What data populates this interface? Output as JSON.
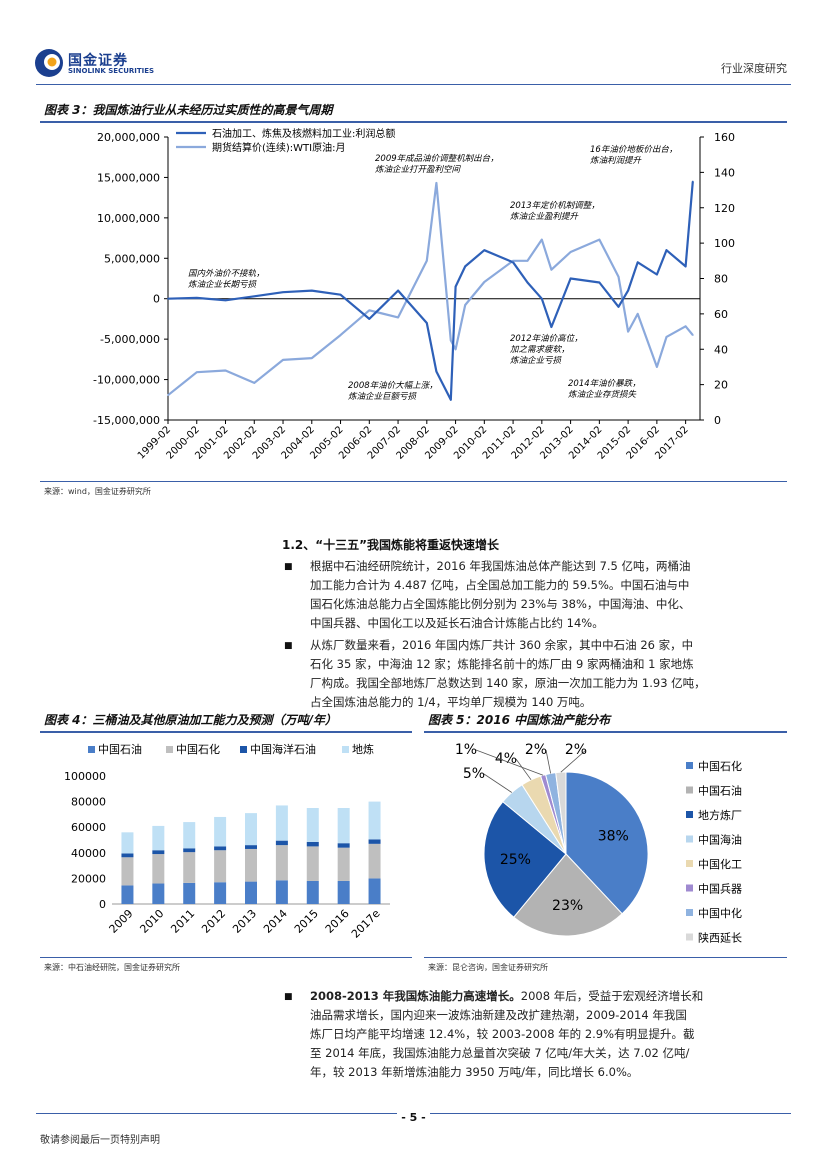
{
  "header": {
    "brand_cn": "国金证券",
    "brand_en": "SINOLINK SECURITIES",
    "report_type": "行业深度研究"
  },
  "fig3": {
    "title": "图表 3：我国炼油行业从未经历过实质性的高景气周期",
    "source": "来源：wind，国金证券研究所",
    "legend": [
      "石油加工、炼焦及核燃料加工业:利润总额",
      "期货结算价(连续):WTI原油:月"
    ],
    "left_ticks": [
      "20,000,000",
      "15,000,000",
      "10,000,000",
      "5,000,000",
      "0",
      "-5,000,000",
      "-10,000,000",
      "-15,000,000"
    ],
    "right_ticks": [
      "160",
      "140",
      "120",
      "100",
      "80",
      "60",
      "40",
      "20",
      "0"
    ],
    "x_ticks": [
      "1999-02",
      "2000-02",
      "2001-02",
      "2002-02",
      "2003-02",
      "2004-02",
      "2005-02",
      "2006-02",
      "2007-02",
      "2008-02",
      "2009-02",
      "2010-02",
      "2011-02",
      "2012-02",
      "2013-02",
      "2014-02",
      "2015-02",
      "2016-02",
      "2017-02"
    ],
    "annotations": [
      {
        "lines": [
          "国内外油价不接轨，",
          "炼油企业长期亏损"
        ]
      },
      {
        "lines": [
          "2009年成品油价调整机制出台，",
          "炼油企业打开盈利空间"
        ]
      },
      {
        "lines": [
          "2013年定价机制调整，",
          "炼油企业盈利提升"
        ]
      },
      {
        "lines": [
          "16年油价地板价出台，",
          "炼油利润提升"
        ]
      },
      {
        "lines": [
          "2008年油价大幅上涨，",
          "炼油企业巨额亏损"
        ]
      },
      {
        "lines": [
          "2012年油价高位，",
          "加之需求疲软，",
          "炼油企业亏损"
        ]
      },
      {
        "lines": [
          "2014年油价暴跌，",
          "炼油企业存货损失"
        ]
      }
    ]
  },
  "section": {
    "heading": "1.2、“十三五”我国炼能将重返快速增长",
    "para1": [
      "根据中石油经研院统计，2016 年我国炼油总体产能达到 7.5 亿吨，两桶油",
      "加工能力合计为 4.487 亿吨，占全国总加工能力的 59.5%。中国石油与中",
      "国石化炼油总能力占全国炼能比例分别为 23%与 38%，中国海油、中化、",
      "中国兵器、中国化工以及延长石油合计炼能占比约 14%。"
    ],
    "para2": [
      "从炼厂数量来看，2016 年国内炼厂共计 360 余家，其中中石油 26 家，中",
      "石化 35 家，中海油 12 家；炼能排名前十的炼厂由 9 家两桶油和 1 家地炼",
      "厂构成。我国全部地炼厂总数达到 140 家，原油一次加工能力为 1.93 亿吨，",
      "占全国炼油总能力的 1/4，平均单厂规模为 140 万吨。"
    ],
    "para3_bold": "2008-2013 年我国炼油能力高速增长。",
    "para3": [
      "2008 年后，受益于宏观经济增长和",
      "油品需求增长，国内迎来一波炼油新建及改扩建热潮，2009-2014 年我国",
      "炼厂日均产能平均增速 12.4%，较 2003-2008 年的 2.9%有明显提升。截",
      "至 2014 年底，我国炼油能力总量首次突破 7 亿吨/年大关，达 7.02 亿吨/",
      "年，较 2013 年新增炼油能力 3950 万吨/年，同比增长 6.0%。"
    ]
  },
  "fig4": {
    "title": "图表 4：三桶油及其他原油加工能力及预测（万吨/年）",
    "source": "来源：中石油经研院，国金证券研究所",
    "legend": [
      "中国石油",
      "中国石化",
      "中国海洋石油",
      "地炼"
    ],
    "y_ticks": [
      "100000",
      "80000",
      "60000",
      "40000",
      "20000",
      "0"
    ]
  },
  "fig5": {
    "title": "图表 5：2016 中国炼油产能分布",
    "source": "来源：昆仑咨询，国金证券研究所",
    "legend": [
      "中国石化",
      "中国石油",
      "地方炼厂",
      "中国海油",
      "中国化工",
      "中国兵器",
      "中国中化",
      "陕西延长"
    ]
  },
  "footer": {
    "page": "- 5 -",
    "note": "敬请参阅最后一页特别声明"
  },
  "colors": {
    "brand": "#1b3f8f",
    "rule": "#3a5fa8",
    "series_dark": "#2e60b8",
    "series_light": "#8ba9dc",
    "cnpc": "#4a7ec8",
    "sinopec": "#bfbfbf",
    "cnooc": "#1c55a8",
    "local": "#bfe0f5"
  },
  "chart_data": [
    {
      "type": "line",
      "name": "fig3",
      "x": [
        "1999-02",
        "2000-02",
        "2001-02",
        "2002-02",
        "2003-02",
        "2004-02",
        "2005-02",
        "2006-02",
        "2007-02",
        "2008-02",
        "2008-06",
        "2008-12",
        "2009-02",
        "2009-06",
        "2010-02",
        "2011-02",
        "2011-08",
        "2012-02",
        "2012-06",
        "2013-02",
        "2014-02",
        "2014-10",
        "2015-02",
        "2015-06",
        "2016-02",
        "2016-06",
        "2017-02",
        "2017-05"
      ],
      "series": [
        {
          "name": "石油加工、炼焦及核燃料加工业:利润总额",
          "axis": "left",
          "values": [
            0,
            100000,
            -200000,
            300000,
            800000,
            1000000,
            500000,
            -2500000,
            1000000,
            -3000000,
            -9000000,
            -12500000,
            1500000,
            4000000,
            6000000,
            4500000,
            2000000,
            0,
            -3500000,
            2500000,
            2000000,
            -1000000,
            1000000,
            4500000,
            3000000,
            6000000,
            4000000,
            14500000
          ]
        },
        {
          "name": "期货结算价(连续):WTI原油:月",
          "axis": "right",
          "values": [
            14,
            27,
            28,
            21,
            34,
            35,
            48,
            62,
            58,
            90,
            134,
            45,
            40,
            65,
            78,
            90,
            90,
            102,
            85,
            95,
            102,
            81,
            50,
            60,
            30,
            47,
            53,
            48
          ]
        }
      ],
      "ylim_left": [
        -15000000,
        20000000
      ],
      "ylim_right": [
        0,
        160
      ],
      "legend_position": "top-left"
    },
    {
      "type": "bar",
      "name": "fig4",
      "stacked": true,
      "categories": [
        "2009",
        "2010",
        "2011",
        "2012",
        "2013",
        "2014",
        "2015",
        "2016",
        "2017e"
      ],
      "series": [
        {
          "name": "中国石油",
          "values": [
            14500,
            16000,
            16500,
            17000,
            17500,
            18500,
            18000,
            18000,
            20000
          ]
        },
        {
          "name": "中国石化",
          "values": [
            22000,
            23000,
            24000,
            25000,
            25500,
            27500,
            27000,
            26000,
            27000
          ]
        },
        {
          "name": "中国海洋石油",
          "values": [
            3000,
            3000,
            3000,
            3000,
            3000,
            3500,
            3500,
            3500,
            3500
          ]
        },
        {
          "name": "地炼",
          "values": [
            16500,
            19000,
            20500,
            23000,
            25000,
            27500,
            26500,
            27500,
            29500
          ]
        }
      ],
      "ylim": [
        0,
        100000
      ],
      "legend_position": "top"
    },
    {
      "type": "pie",
      "name": "fig5",
      "labels": [
        "中国石化",
        "中国石油",
        "地方炼厂",
        "中国海油",
        "中国化工",
        "中国兵器",
        "中国中化",
        "陕西延长"
      ],
      "values": [
        38,
        23,
        25,
        5,
        4,
        1,
        2,
        2
      ],
      "value_labels": [
        "38%",
        "23%",
        "25%",
        "5%",
        "4%",
        "1%",
        "2%",
        "2%"
      ],
      "legend_position": "right"
    }
  ]
}
